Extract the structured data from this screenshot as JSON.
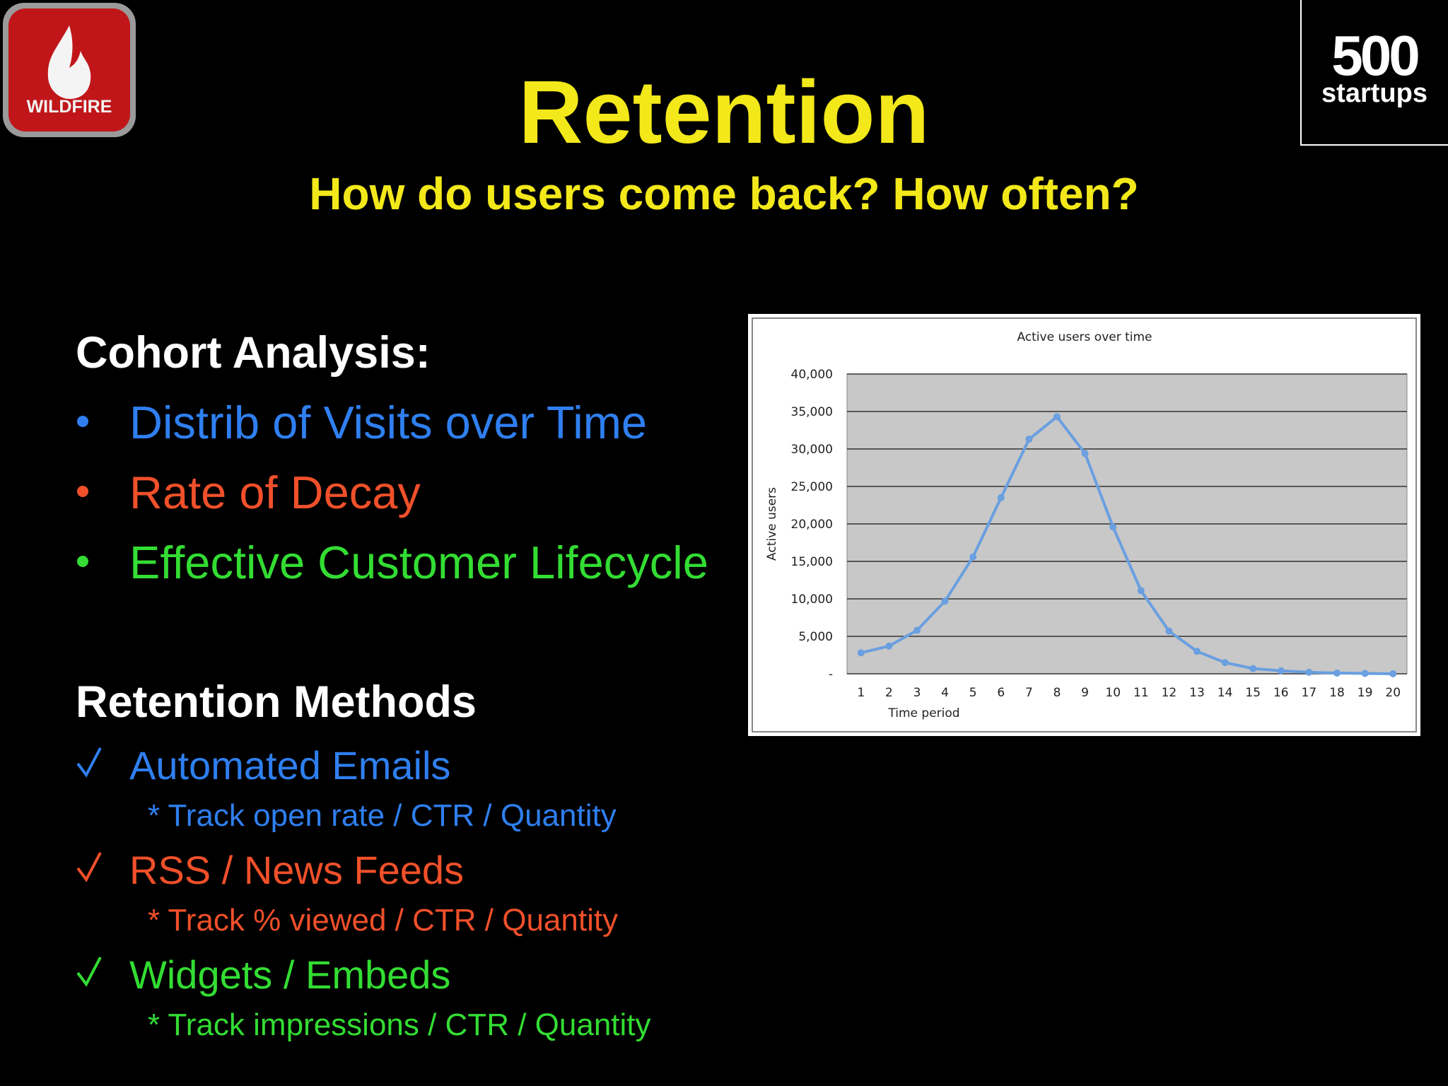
{
  "logos": {
    "wildfire": "WILDFIRE",
    "startups_number": "500",
    "startups_word": "startups"
  },
  "header": {
    "title": "Retention",
    "subtitle": "How do users come back? How often?"
  },
  "cohort": {
    "heading": "Cohort Analysis:",
    "bullets": [
      "Distrib of Visits over Time",
      "Rate of Decay",
      "Effective Customer Lifecycle"
    ]
  },
  "methods": {
    "heading": "Retention Methods",
    "items": [
      {
        "label": "Automated Emails",
        "detail": "* Track open rate / CTR / Quantity"
      },
      {
        "label": "RSS / News Feeds",
        "detail": "* Track % viewed / CTR / Quantity"
      },
      {
        "label": "Widgets / Embeds",
        "detail": "* Track impressions / CTR / Quantity"
      }
    ]
  },
  "chart_data": {
    "type": "line",
    "title": "Active users over time",
    "x_label": "Time period",
    "y_label": "Active users",
    "categories": [
      "1",
      "2",
      "3",
      "4",
      "5",
      "6",
      "7",
      "8",
      "9",
      "10",
      "11",
      "12",
      "13",
      "14",
      "15",
      "16",
      "17",
      "18",
      "19",
      "20"
    ],
    "series": [
      {
        "name": "Active users",
        "color": "#6a9fe0",
        "values": [
          2800,
          3700,
          5800,
          9700,
          15600,
          23500,
          31300,
          34300,
          29400,
          19600,
          11100,
          5700,
          3000,
          1500,
          700,
          400,
          200,
          100,
          50,
          0
        ]
      }
    ],
    "ylim": [
      0,
      40000
    ],
    "yticks": [
      {
        "value": 0,
        "label": "-"
      },
      {
        "value": 5000,
        "label": "5,000"
      },
      {
        "value": 10000,
        "label": "10,000"
      },
      {
        "value": 15000,
        "label": "15,000"
      },
      {
        "value": 20000,
        "label": "20,000"
      },
      {
        "value": 25000,
        "label": "25,000"
      },
      {
        "value": 30000,
        "label": "30,000"
      },
      {
        "value": 35000,
        "label": "35,000"
      },
      {
        "value": 40000,
        "label": "40,000"
      }
    ],
    "grid": true
  }
}
